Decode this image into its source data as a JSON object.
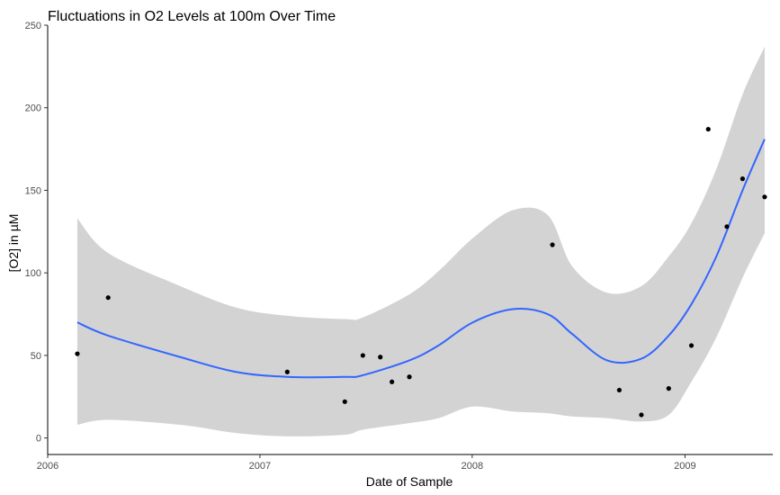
{
  "chart_data": {
    "type": "scatter",
    "title": "Fluctuations in O2 Levels at 100m Over Time",
    "xlabel": "Date of Sample",
    "ylabel": "[O2] in µM",
    "x_type": "date",
    "xlim": [
      "2006-01-01",
      "2009-06-01"
    ],
    "ylim": [
      -10,
      250
    ],
    "x_ticks": [
      {
        "date": "2006-01-01",
        "label": "2006"
      },
      {
        "date": "2007-01-01",
        "label": "2007"
      },
      {
        "date": "2008-01-01",
        "label": "2008"
      },
      {
        "date": "2009-01-01",
        "label": "2009"
      }
    ],
    "y_ticks": [
      0,
      50,
      100,
      150,
      200,
      250
    ],
    "grid": false,
    "points": [
      {
        "date": "2006-02-21",
        "value": 51
      },
      {
        "date": "2006-04-15",
        "value": 85
      },
      {
        "date": "2007-02-17",
        "value": 40
      },
      {
        "date": "2007-05-27",
        "value": 22
      },
      {
        "date": "2007-06-27",
        "value": 50
      },
      {
        "date": "2007-07-27",
        "value": 49
      },
      {
        "date": "2007-08-16",
        "value": 34
      },
      {
        "date": "2007-09-15",
        "value": 37
      },
      {
        "date": "2008-05-18",
        "value": 117
      },
      {
        "date": "2008-09-10",
        "value": 29
      },
      {
        "date": "2008-10-18",
        "value": 14
      },
      {
        "date": "2008-12-04",
        "value": 30
      },
      {
        "date": "2009-01-12",
        "value": 56
      },
      {
        "date": "2009-02-10",
        "value": 187
      },
      {
        "date": "2009-03-14",
        "value": 128
      },
      {
        "date": "2009-04-10",
        "value": 157
      },
      {
        "date": "2009-05-18",
        "value": 146
      }
    ],
    "smooth": {
      "method": "loess",
      "color": "#3366FF",
      "ribbon_color": "#D3D3D3",
      "dates": [
        "2006-02-21",
        "2006-04-15",
        "2006-08-17",
        "2006-11-21",
        "2007-02-17",
        "2007-05-27",
        "2007-06-27",
        "2007-09-15",
        "2007-11-04",
        "2008-01-02",
        "2008-03-11",
        "2008-05-10",
        "2008-06-21",
        "2008-08-20",
        "2008-10-18",
        "2008-12-04",
        "2009-01-12",
        "2009-02-24",
        "2009-04-10",
        "2009-05-18"
      ],
      "fit": [
        70,
        62,
        49,
        40,
        37,
        37,
        38,
        47,
        56,
        70,
        78,
        75,
        63,
        47,
        48,
        62,
        81,
        110,
        150,
        181
      ],
      "upper": [
        133,
        112,
        92,
        79,
        74,
        72,
        73,
        87,
        101,
        121,
        138,
        135,
        104,
        88,
        92,
        110,
        130,
        163,
        208,
        237
      ],
      "lower": [
        8,
        11,
        8,
        3,
        1,
        2,
        5,
        9,
        12,
        19,
        16,
        15,
        13,
        12,
        10,
        14,
        34,
        61,
        97,
        124
      ]
    },
    "colors": {
      "points": "#000000",
      "axis": "#000000",
      "text": "#4d4d4d"
    }
  }
}
